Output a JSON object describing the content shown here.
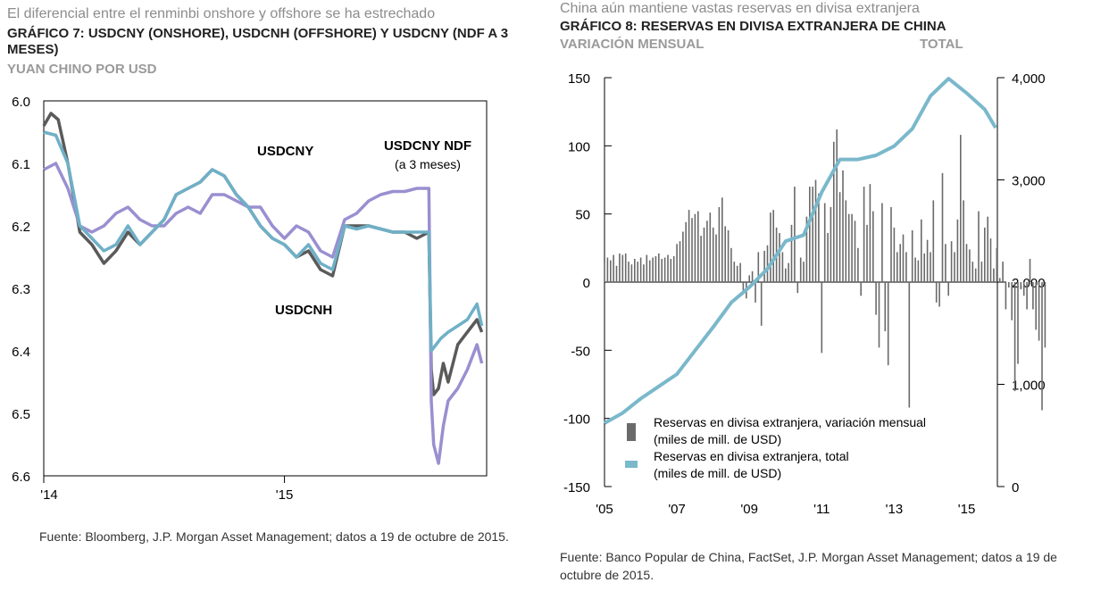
{
  "colors": {
    "usdcny": "#6fb0c7",
    "usdcnh": "#5a5a5a",
    "ndf": "#9a8fd0",
    "bars": "#6a6a6a",
    "total": "#7ab8cb"
  },
  "left": {
    "subtitle": "El diferencial entre el renminbi onshore y offshore se ha estrechado",
    "title": "GRÁFICO 7: USDCNY (ONSHORE), USDCNH (OFFSHORE) Y USDCNY (NDF A 3 MESES)",
    "unit": "YUAN CHINO POR USD",
    "source": "Fuente: Bloomberg, J.P. Morgan Asset Management; datos a 19 de octubre de 2015."
  },
  "right": {
    "subtitle": "China aún mantiene vastas reservas en divisa extranjera",
    "title": "GRÁFICO 8: RESERVAS EN DIVISA EXTRANJERA DE CHINA",
    "unit_left": "VARIACIÓN MENSUAL",
    "unit_right": "TOTAL",
    "source": "Fuente: Banco Popular de China, FactSet, J.P. Morgan Asset Management; datos a 19 de octubre de 2015."
  },
  "chart_data": [
    {
      "type": "line",
      "title": "USDCNY (ONSHORE), USDCNH (OFFSHORE) Y USDCNY (NDF A 3 MESES)",
      "ylabel": "YUAN CHINO POR USD",
      "ylim": [
        6.0,
        6.6
      ],
      "y_inverted": true,
      "yticks": [
        6.0,
        6.1,
        6.2,
        6.3,
        6.4,
        6.5,
        6.6
      ],
      "ytick_labels": [
        "6.0",
        "6.1",
        "6.2",
        "6.3",
        "6.4",
        "6.5",
        "6.6"
      ],
      "xlim": [
        2014.0,
        2015.84
      ],
      "xticks": [
        2014.0,
        2015.0
      ],
      "xtick_labels": [
        "'14",
        "'15"
      ],
      "annotations": {
        "usdcny": "USDCNY",
        "usdcnh": "USDCNH",
        "ndf_1": "USDCNY NDF",
        "ndf_2": "(a 3 meses)"
      },
      "series": [
        {
          "name": "USDCNY",
          "x": [
            2014.0,
            2014.05,
            2014.1,
            2014.15,
            2014.2,
            2014.25,
            2014.3,
            2014.35,
            2014.4,
            2014.45,
            2014.5,
            2014.55,
            2014.6,
            2014.65,
            2014.7,
            2014.75,
            2014.8,
            2014.85,
            2014.9,
            2014.95,
            2015.0,
            2015.05,
            2015.1,
            2015.15,
            2015.2,
            2015.25,
            2015.3,
            2015.35,
            2015.4,
            2015.45,
            2015.5,
            2015.55,
            2015.6,
            2015.61,
            2015.63,
            2015.65,
            2015.68,
            2015.72,
            2015.76,
            2015.8,
            2015.82
          ],
          "y": [
            6.05,
            6.055,
            6.1,
            6.2,
            6.22,
            6.24,
            6.23,
            6.2,
            6.23,
            6.21,
            6.19,
            6.15,
            6.14,
            6.13,
            6.11,
            6.12,
            6.15,
            6.17,
            6.2,
            6.22,
            6.23,
            6.25,
            6.23,
            6.26,
            6.27,
            6.2,
            6.205,
            6.2,
            6.205,
            6.21,
            6.21,
            6.21,
            6.21,
            6.4,
            6.39,
            6.38,
            6.37,
            6.36,
            6.35,
            6.325,
            6.36
          ]
        },
        {
          "name": "USDCNH",
          "x": [
            2014.0,
            2014.03,
            2014.06,
            2014.1,
            2014.15,
            2014.2,
            2014.25,
            2014.3,
            2014.35,
            2014.4,
            2014.45,
            2014.5,
            2014.55,
            2014.6,
            2014.65,
            2014.7,
            2014.75,
            2014.8,
            2014.85,
            2014.9,
            2014.95,
            2015.0,
            2015.05,
            2015.1,
            2015.15,
            2015.2,
            2015.25,
            2015.3,
            2015.35,
            2015.4,
            2015.45,
            2015.5,
            2015.55,
            2015.6,
            2015.61,
            2015.62,
            2015.64,
            2015.66,
            2015.68,
            2015.72,
            2015.76,
            2015.8,
            2015.82
          ],
          "y": [
            6.04,
            6.02,
            6.03,
            6.1,
            6.21,
            6.23,
            6.26,
            6.24,
            6.21,
            6.23,
            6.21,
            6.19,
            6.15,
            6.14,
            6.13,
            6.11,
            6.12,
            6.15,
            6.17,
            6.2,
            6.22,
            6.23,
            6.25,
            6.24,
            6.27,
            6.28,
            6.2,
            6.2,
            6.2,
            6.205,
            6.21,
            6.21,
            6.22,
            6.21,
            6.43,
            6.47,
            6.46,
            6.42,
            6.45,
            6.39,
            6.37,
            6.35,
            6.37
          ]
        },
        {
          "name": "USDCNY NDF (a 3 meses)",
          "x": [
            2014.0,
            2014.05,
            2014.1,
            2014.15,
            2014.2,
            2014.25,
            2014.3,
            2014.35,
            2014.4,
            2014.45,
            2014.5,
            2014.55,
            2014.6,
            2014.65,
            2014.7,
            2014.75,
            2014.8,
            2014.85,
            2014.9,
            2014.95,
            2015.0,
            2015.05,
            2015.1,
            2015.15,
            2015.2,
            2015.25,
            2015.3,
            2015.35,
            2015.4,
            2015.45,
            2015.5,
            2015.55,
            2015.6,
            2015.61,
            2015.62,
            2015.64,
            2015.66,
            2015.68,
            2015.72,
            2015.76,
            2015.8,
            2015.82
          ],
          "y": [
            6.11,
            6.1,
            6.14,
            6.2,
            6.21,
            6.2,
            6.18,
            6.17,
            6.19,
            6.2,
            6.2,
            6.18,
            6.17,
            6.18,
            6.15,
            6.15,
            6.16,
            6.17,
            6.17,
            6.2,
            6.22,
            6.2,
            6.21,
            6.24,
            6.25,
            6.19,
            6.18,
            6.16,
            6.15,
            6.145,
            6.145,
            6.14,
            6.14,
            6.48,
            6.55,
            6.58,
            6.52,
            6.48,
            6.46,
            6.43,
            6.39,
            6.42
          ]
        }
      ]
    },
    {
      "type": "bar",
      "title": "RESERVAS EN DIVISA EXTRANJERA DE CHINA",
      "ylabel": "VARIACIÓN MENSUAL",
      "y2label": "TOTAL",
      "ylim": [
        -150,
        150
      ],
      "yticks": [
        -150,
        -100,
        -50,
        0,
        50,
        100,
        150
      ],
      "ytick_labels": [
        "-150",
        "-100",
        "-50",
        "0",
        "50",
        "100",
        "150"
      ],
      "y2lim": [
        0,
        4000
      ],
      "y2ticks": [
        0,
        1000,
        2000,
        3000,
        4000
      ],
      "y2tick_labels": [
        "0",
        "1,000",
        "2,000",
        "3,000",
        "4,000"
      ],
      "xlim": [
        2005.0,
        2015.85
      ],
      "xticks": [
        2005,
        2007,
        2009,
        2011,
        2013,
        2015
      ],
      "xtick_labels": [
        "'05",
        "'07",
        "'09",
        "'11",
        "'13",
        "'15"
      ],
      "legend": [
        {
          "label_1": "Reservas en divisa extranjera, variación mensual",
          "label_2": "(miles de mill. de USD)"
        },
        {
          "label_1": "Reservas en divisa extranjera, total",
          "label_2": "(miles de mill. de USD)"
        }
      ],
      "series": [
        {
          "name": "Reservas en divisa extranjera, variación mensual (miles de mill. de USD)",
          "x_start": 2005.0,
          "step": 0.08333,
          "values": [
            14,
            18,
            16,
            20,
            12,
            21,
            20,
            21,
            15,
            13,
            17,
            15,
            18,
            13,
            20,
            16,
            18,
            19,
            21,
            17,
            18,
            20,
            17,
            19,
            28,
            30,
            37,
            44,
            53,
            47,
            50,
            52,
            34,
            40,
            45,
            51,
            40,
            35,
            55,
            62,
            41,
            38,
            25,
            15,
            12,
            14,
            -8,
            -12,
            5,
            8,
            -15,
            22,
            -32,
            23,
            27,
            51,
            53,
            40,
            36,
            22,
            10,
            14,
            42,
            70,
            -8,
            18,
            15,
            48,
            70,
            70,
            75,
            65,
            -52,
            58,
            36,
            55,
            103,
            112,
            66,
            82,
            60,
            50,
            50,
            45,
            25,
            -10,
            70,
            42,
            72,
            52,
            -24,
            -48,
            58,
            -36,
            -61,
            55,
            40,
            22,
            28,
            35,
            22,
            -92,
            38,
            18,
            16,
            46,
            21,
            31,
            22,
            60,
            -15,
            -18,
            80,
            28,
            -10,
            30,
            22,
            46,
            108,
            60,
            28,
            24,
            15,
            10,
            52,
            15,
            40,
            48,
            32,
            10,
            25,
            3,
            15,
            -20,
            -4,
            -28,
            -80,
            -60,
            -5,
            -10,
            -20,
            17,
            -20,
            -35,
            -43,
            -94,
            -48
          ]
        },
        {
          "name": "Reservas en divisa extranjera, total (miles de mill. de USD)",
          "x": [
            2005.0,
            2005.5,
            2006.0,
            2006.5,
            2007.0,
            2007.5,
            2008.0,
            2008.5,
            2009.0,
            2009.5,
            2010.0,
            2010.5,
            2011.0,
            2011.5,
            2012.0,
            2012.5,
            2013.0,
            2013.5,
            2014.0,
            2014.5,
            2015.0,
            2015.5,
            2015.8
          ],
          "y": [
            620,
            720,
            860,
            980,
            1100,
            1330,
            1560,
            1800,
            1950,
            2130,
            2400,
            2460,
            2880,
            3200,
            3200,
            3240,
            3330,
            3500,
            3820,
            3990,
            3850,
            3690,
            3510
          ]
        }
      ]
    }
  ]
}
